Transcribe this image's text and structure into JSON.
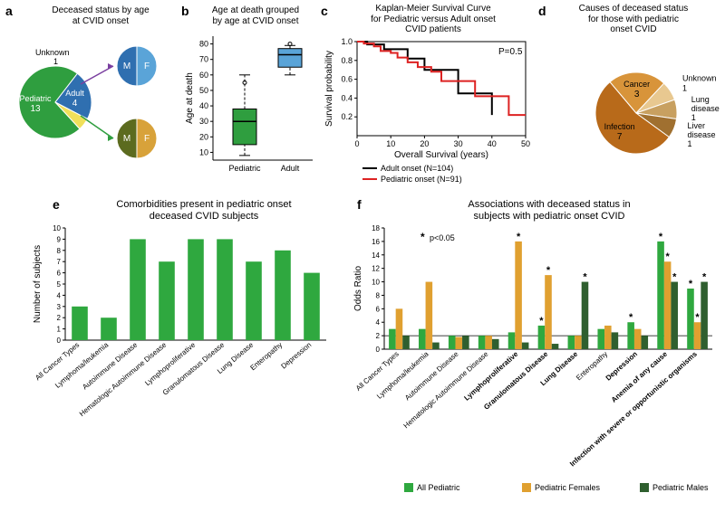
{
  "a": {
    "label": "a",
    "title": "Deceased status by age\nat CVID onset",
    "main_pie": {
      "slices": [
        {
          "label": "Pediatric",
          "value": 13,
          "color": "#2f9e3f",
          "text_color": "#fff"
        },
        {
          "label": "Adult",
          "value": 4,
          "color": "#2f6fb0",
          "text_color": "#fff"
        },
        {
          "label": "Unknown",
          "value": 1,
          "color": "#f0e05a",
          "text_color": "#000",
          "label_outside": true
        }
      ],
      "radius": 40
    },
    "sub_pies": [
      {
        "slices": [
          {
            "label": "F",
            "color": "#5aa4d8"
          },
          {
            "label": "M",
            "color": "#2f6fb0"
          }
        ],
        "radius": 22,
        "arrow_color": "#7a3fa0"
      },
      {
        "slices": [
          {
            "label": "F",
            "color": "#d8a23a"
          },
          {
            "label": "M",
            "color": "#5c6b1f"
          }
        ],
        "radius": 22,
        "arrow_color": "#2f9e3f"
      }
    ]
  },
  "b": {
    "label": "b",
    "title": "Age at death grouped\nby age at CVID onset",
    "ylabel": "Age at death",
    "yticks": [
      10,
      20,
      30,
      40,
      50,
      60,
      70,
      80
    ],
    "ylim": [
      5,
      85
    ],
    "categories": [
      "Pediatric",
      "Adult"
    ],
    "boxes": [
      {
        "q1": 15,
        "median": 30,
        "q3": 38,
        "whisker_lo": 8,
        "whisker_hi": 60,
        "color": "#2f9e3f",
        "outliers": [
          55
        ]
      },
      {
        "q1": 65,
        "median": 73,
        "q3": 77,
        "whisker_lo": 60,
        "whisker_hi": 79,
        "color": "#5aa4d8",
        "outliers": [
          80
        ]
      }
    ],
    "box_width": 0.6,
    "label_fontsize": 10
  },
  "c": {
    "label": "c",
    "title": "Kaplan-Meier Survival Curve\nfor Pediatric versus Adult onset\nCVID patients",
    "xlabel": "Overall Survival (years)",
    "ylabel": "Survival probability",
    "xlim": [
      0,
      50
    ],
    "xticks": [
      0,
      10,
      20,
      30,
      40,
      50
    ],
    "ylim": [
      0,
      1
    ],
    "yticks": [
      0.2,
      0.4,
      0.6,
      0.8,
      1.0
    ],
    "pvalue": "P=0.5",
    "series": [
      {
        "name": "Adult onset (N=104)",
        "color": "#000",
        "points": [
          [
            0,
            1.0
          ],
          [
            3,
            1.0
          ],
          [
            3,
            0.97
          ],
          [
            8,
            0.97
          ],
          [
            8,
            0.92
          ],
          [
            15,
            0.92
          ],
          [
            15,
            0.82
          ],
          [
            20,
            0.82
          ],
          [
            20,
            0.7
          ],
          [
            25,
            0.7
          ],
          [
            25,
            0.7
          ],
          [
            30,
            0.7
          ],
          [
            30,
            0.45
          ],
          [
            35,
            0.45
          ],
          [
            35,
            0.45
          ],
          [
            40,
            0.45
          ],
          [
            40,
            0.22
          ]
        ]
      },
      {
        "name": "Pediatric onset (N=91)",
        "color": "#d22",
        "points": [
          [
            0,
            1.0
          ],
          [
            2,
            1.0
          ],
          [
            2,
            0.98
          ],
          [
            5,
            0.98
          ],
          [
            5,
            0.95
          ],
          [
            7,
            0.95
          ],
          [
            7,
            0.9
          ],
          [
            10,
            0.9
          ],
          [
            10,
            0.88
          ],
          [
            12,
            0.88
          ],
          [
            12,
            0.83
          ],
          [
            15,
            0.83
          ],
          [
            15,
            0.78
          ],
          [
            18,
            0.78
          ],
          [
            18,
            0.73
          ],
          [
            22,
            0.73
          ],
          [
            22,
            0.68
          ],
          [
            25,
            0.68
          ],
          [
            25,
            0.58
          ],
          [
            35,
            0.58
          ],
          [
            35,
            0.42
          ],
          [
            45,
            0.42
          ],
          [
            45,
            0.22
          ],
          [
            50,
            0.22
          ]
        ]
      }
    ],
    "line_width": 2,
    "label_fontsize": 10
  },
  "d": {
    "label": "d",
    "title": "Causes of deceased status\nfor those with pediatric\nonset CVID",
    "slices": [
      {
        "label": "Infection",
        "value": 7,
        "color": "#b86a1a"
      },
      {
        "label": "Cancer",
        "value": 3,
        "color": "#d8943a"
      },
      {
        "label": "Unknown",
        "value": 1,
        "color": "#e8c890",
        "label_outside": true
      },
      {
        "label": "Lung disease",
        "value": 1,
        "color": "#c8a060",
        "label_outside": true
      },
      {
        "label": "Liver disease",
        "value": 1,
        "color": "#a07030",
        "label_outside": true
      }
    ],
    "radius": 45,
    "label_fontsize": 9
  },
  "e": {
    "label": "e",
    "title": "Comorbidities present in pediatric onset\ndeceased CVID subjects",
    "ylabel": "Number of subjects",
    "ylim": [
      0,
      10
    ],
    "yticks": [
      0,
      1,
      2,
      3,
      4,
      5,
      6,
      7,
      8,
      9,
      10
    ],
    "categories": [
      "All Cancer Types",
      "Lymphoma/leukemia",
      "Autoimmune Disease",
      "Hematologic Autoimmune Disease",
      "Lymphoproliferative",
      "Granulomatous Disease",
      "Lung Disease",
      "Enteropathy",
      "Depression"
    ],
    "values": [
      3,
      2,
      9,
      7,
      9,
      9,
      7,
      8,
      6
    ],
    "bar_color": "#2fa83f",
    "bar_width": 0.55,
    "label_fontsize": 8
  },
  "f": {
    "label": "f",
    "title": "Associations with deceased status in\nsubjects with pediatric onset CVID",
    "ylabel": "Odds Ratio",
    "ylim": [
      0,
      18
    ],
    "yticks": [
      0,
      2,
      4,
      6,
      8,
      10,
      12,
      14,
      16,
      18
    ],
    "ref_line": 2,
    "legend": [
      {
        "name": "All Pediatric",
        "color": "#2fa83f"
      },
      {
        "name": "Pediatric Females",
        "color": "#e0a030"
      },
      {
        "name": "Pediatric Males",
        "color": "#2f5f2f"
      }
    ],
    "pnote": "p<0.05",
    "categories": [
      {
        "name": "All Cancer Types",
        "bold": false,
        "sig": [
          false,
          false,
          false
        ]
      },
      {
        "name": "Lymphoma/leukemia",
        "bold": false,
        "sig": [
          false,
          false,
          false
        ]
      },
      {
        "name": "Autoimmune Disease",
        "bold": false,
        "sig": [
          false,
          false,
          false
        ]
      },
      {
        "name": "Hematologic Autoimmune Disease",
        "bold": false,
        "sig": [
          false,
          false,
          false
        ]
      },
      {
        "name": "Lymphoproliferative",
        "bold": true,
        "sig": [
          false,
          true,
          false
        ]
      },
      {
        "name": "Granulomatous Disease",
        "bold": true,
        "sig": [
          true,
          true,
          false
        ]
      },
      {
        "name": "Lung Disease",
        "bold": true,
        "sig": [
          false,
          false,
          true
        ]
      },
      {
        "name": "Enteropathy",
        "bold": false,
        "sig": [
          false,
          false,
          false
        ]
      },
      {
        "name": "Depression",
        "bold": true,
        "sig": [
          true,
          false,
          false
        ]
      },
      {
        "name": "Anemia of any cause",
        "bold": true,
        "sig": [
          true,
          true,
          true
        ]
      },
      {
        "name": "Infection with severe or opportunistic organisms",
        "bold": true,
        "sig": [
          true,
          true,
          true
        ]
      }
    ],
    "values": [
      [
        3,
        6,
        2
      ],
      [
        3,
        10,
        1
      ],
      [
        2,
        1.8,
        2
      ],
      [
        2,
        2,
        1.5
      ],
      [
        2.5,
        16,
        1
      ],
      [
        3.5,
        11,
        0.8
      ],
      [
        2,
        2,
        10
      ],
      [
        3,
        3.5,
        2.5
      ],
      [
        4,
        3,
        2
      ],
      [
        16,
        13,
        10
      ],
      [
        9,
        4,
        10
      ]
    ],
    "bar_width": 0.23,
    "label_fontsize": 8
  }
}
